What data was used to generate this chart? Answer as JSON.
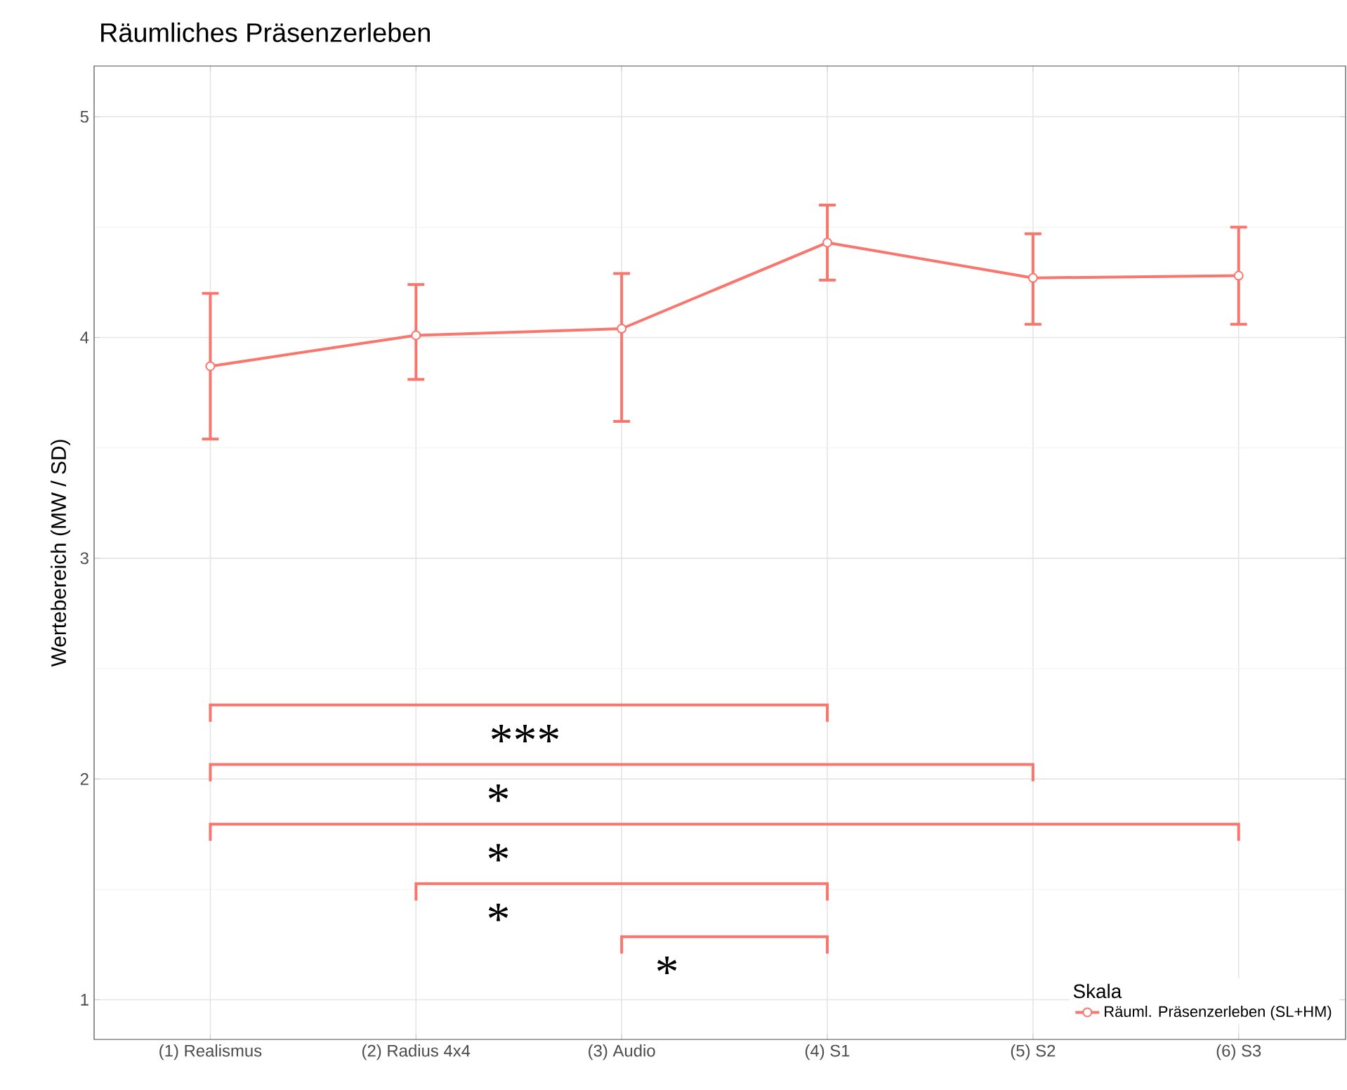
{
  "chart_data": {
    "type": "line",
    "title": "Räumliches Präsenzerleben",
    "ylabel": "Wertebereich (MW / SD)",
    "legend_title": "Skala",
    "categories": [
      "(1) Realismus",
      "(2) Radius 4x4",
      "(3) Audio",
      "(4) S1",
      "(5) S2",
      "(6) S3"
    ],
    "series": [
      {
        "name": "Räuml. Präsenzerleben (SL+HM)",
        "color": "#f8766d",
        "values": [
          3.87,
          4.01,
          4.04,
          4.43,
          4.27,
          4.28
        ],
        "errors": [
          [
            3.54,
            4.2
          ],
          [
            3.81,
            4.24
          ],
          [
            3.62,
            4.29
          ],
          [
            4.26,
            4.6
          ],
          [
            4.06,
            4.47
          ],
          [
            4.06,
            4.5
          ]
        ]
      }
    ],
    "ylim": [
      0.82,
      5.23
    ],
    "yticks": [
      1,
      2,
      3,
      4,
      5
    ],
    "grid": true,
    "legend": "bottom right",
    "marker": "circle",
    "line_style": "solid",
    "annotations": [
      "***",
      "*",
      "*",
      "*",
      "*"
    ]
  }
}
